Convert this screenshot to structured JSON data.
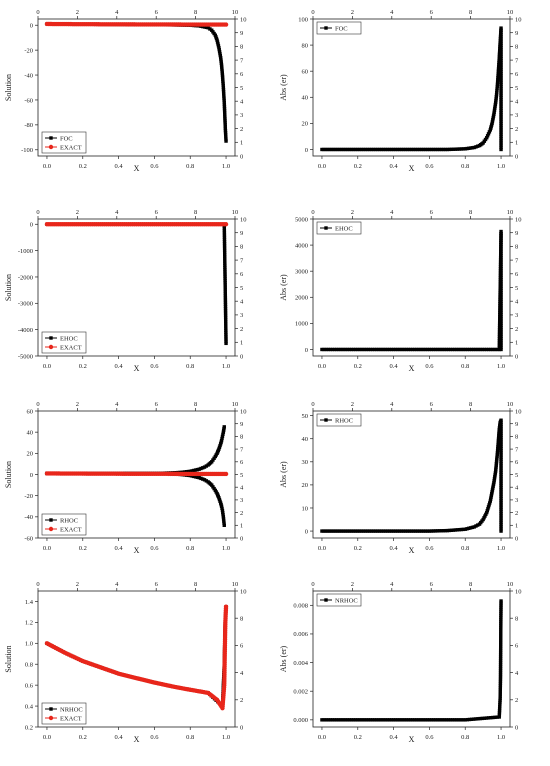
{
  "chart_data": [
    {
      "type": "line",
      "ylabel": "Solution",
      "xlabel": "X",
      "xlim": [
        -0.05,
        1.05
      ],
      "ylim": [
        -105,
        5
      ],
      "x_ticks": [
        "0.0",
        "0.2",
        "0.4",
        "0.6",
        "0.8",
        "1.0"
      ],
      "y_ticks": [
        "0",
        "-20",
        "-40",
        "-60",
        "-80",
        "-100"
      ],
      "y_tick_values": [
        0,
        -20,
        -40,
        -60,
        -80,
        -100
      ],
      "top_ticks": [
        "0",
        "2",
        "4",
        "6",
        "8",
        "10"
      ],
      "right_ticks": [
        "10",
        "9",
        "8",
        "7",
        "6",
        "5",
        "4",
        "3",
        "2",
        "1",
        "0"
      ],
      "legend": [
        "FOC",
        "EXACT"
      ],
      "legend_position": "bottom-left",
      "series": [
        {
          "name": "FOC",
          "color": "#000000",
          "marker": "square",
          "x": [
            0.0,
            0.1,
            0.2,
            0.3,
            0.4,
            0.5,
            0.6,
            0.7,
            0.8,
            0.85,
            0.9,
            0.92,
            0.94,
            0.95,
            0.96,
            0.97,
            0.975,
            0.98,
            0.985,
            0.99,
            0.993,
            0.996,
            1.0
          ],
          "y": [
            1.0,
            0.9,
            0.8,
            0.7,
            0.6,
            0.5,
            0.4,
            0.3,
            0.0,
            -0.5,
            -2,
            -4,
            -8,
            -12,
            -18,
            -26,
            -32,
            -40,
            -50,
            -62,
            -72,
            -83,
            -93
          ]
        },
        {
          "name": "EXACT",
          "color": "#e8261b",
          "marker": "circle",
          "x": [
            0.0,
            0.1,
            0.2,
            0.3,
            0.4,
            0.5,
            0.6,
            0.7,
            0.8,
            0.9,
            1.0
          ],
          "y": [
            1.0,
            0.91,
            0.83,
            0.77,
            0.71,
            0.67,
            0.63,
            0.59,
            0.56,
            0.53,
            0.5
          ]
        }
      ]
    },
    {
      "type": "line",
      "ylabel": "Abs (er)",
      "xlabel": "X",
      "xlim": [
        -0.05,
        1.05
      ],
      "ylim": [
        -5,
        100
      ],
      "x_ticks": [
        "0.0",
        "0.2",
        "0.4",
        "0.6",
        "0.8",
        "1.0"
      ],
      "y_ticks": [
        "100",
        "80",
        "60",
        "40",
        "20",
        "0"
      ],
      "y_tick_values": [
        100,
        80,
        60,
        40,
        20,
        0
      ],
      "top_ticks": [
        "0",
        "2",
        "4",
        "6",
        "8",
        "10"
      ],
      "right_ticks": [
        "10",
        "9",
        "8",
        "7",
        "6",
        "5",
        "4",
        "3",
        "2",
        "1",
        "0"
      ],
      "legend": [
        "FOC"
      ],
      "legend_position": "top-left",
      "series": [
        {
          "name": "FOC",
          "color": "#000000",
          "marker": "square",
          "x": [
            0.0,
            0.1,
            0.2,
            0.3,
            0.4,
            0.5,
            0.6,
            0.7,
            0.8,
            0.85,
            0.88,
            0.9,
            0.92,
            0.94,
            0.95,
            0.96,
            0.97,
            0.975,
            0.98,
            0.985,
            0.99,
            0.995,
            1.0,
            1.0
          ],
          "y": [
            0,
            0,
            0,
            0,
            0,
            0,
            0,
            0,
            0.5,
            1.5,
            3,
            5,
            9,
            15,
            20,
            27,
            36,
            42,
            50,
            60,
            70,
            82,
            93,
            0
          ]
        }
      ]
    },
    {
      "type": "line",
      "ylabel": "Solution",
      "xlabel": "X",
      "xlim": [
        -0.05,
        1.05
      ],
      "ylim": [
        -5000,
        200
      ],
      "x_ticks": [
        "0.0",
        "0.2",
        "0.4",
        "0.6",
        "0.8",
        "1.0"
      ],
      "y_ticks": [
        "0",
        "-1000",
        "-2000",
        "-3000",
        "-4000",
        "-5000"
      ],
      "y_tick_values": [
        0,
        -1000,
        -2000,
        -3000,
        -4000,
        -5000
      ],
      "top_ticks": [
        "0",
        "2",
        "4",
        "6",
        "8",
        "10"
      ],
      "right_ticks": [
        "10",
        "9",
        "8",
        "7",
        "6",
        "5",
        "4",
        "3",
        "2",
        "1",
        "0"
      ],
      "legend": [
        "EHOC",
        "EXACT"
      ],
      "legend_position": "bottom-left",
      "series": [
        {
          "name": "EHOC",
          "color": "#000000",
          "marker": "square",
          "x": [
            0.0,
            0.2,
            0.4,
            0.6,
            0.8,
            0.99,
            1.0
          ],
          "y": [
            1,
            1,
            1,
            1,
            1,
            1,
            -4520
          ]
        },
        {
          "name": "EXACT",
          "color": "#e8261b",
          "marker": "circle",
          "x": [
            0.0,
            0.1,
            0.2,
            0.3,
            0.4,
            0.5,
            0.6,
            0.7,
            0.8,
            0.9,
            1.0
          ],
          "y": [
            1.0,
            0.91,
            0.83,
            0.77,
            0.71,
            0.67,
            0.63,
            0.59,
            0.56,
            0.53,
            0.5
          ]
        }
      ]
    },
    {
      "type": "line",
      "ylabel": "Abs (er)",
      "xlabel": "X",
      "xlim": [
        -0.05,
        1.05
      ],
      "ylim": [
        -250,
        5000
      ],
      "x_ticks": [
        "0.0",
        "0.2",
        "0.4",
        "0.6",
        "0.8",
        "1.0"
      ],
      "y_ticks": [
        "5000",
        "4000",
        "3000",
        "2000",
        "1000",
        "0"
      ],
      "y_tick_values": [
        5000,
        4000,
        3000,
        2000,
        1000,
        0
      ],
      "top_ticks": [
        "0",
        "2",
        "4",
        "6",
        "8",
        "10"
      ],
      "right_ticks": [
        "10",
        "9",
        "8",
        "7",
        "6",
        "5",
        "4",
        "3",
        "2",
        "1",
        "0"
      ],
      "legend": [
        "EHOC"
      ],
      "legend_position": "top-left",
      "series": [
        {
          "name": "EHOC",
          "color": "#000000",
          "marker": "square",
          "x": [
            0.0,
            0.2,
            0.4,
            0.6,
            0.8,
            0.99,
            1.0,
            1.0
          ],
          "y": [
            0,
            0,
            0,
            0,
            0,
            0,
            4520,
            0
          ]
        }
      ]
    },
    {
      "type": "line",
      "ylabel": "Solution",
      "xlabel": "X",
      "xlim": [
        -0.05,
        1.05
      ],
      "ylim": [
        -60,
        60
      ],
      "x_ticks": [
        "0.0",
        "0.2",
        "0.4",
        "0.6",
        "0.8",
        "1.0"
      ],
      "y_ticks": [
        "60",
        "40",
        "20",
        "0",
        "-20",
        "-40",
        "-60"
      ],
      "y_tick_values": [
        60,
        40,
        20,
        0,
        -20,
        -40,
        -60
      ],
      "top_ticks": [
        "0",
        "2",
        "4",
        "6",
        "8",
        "10"
      ],
      "right_ticks": [
        "10",
        "9",
        "8",
        "7",
        "6",
        "5",
        "4",
        "3",
        "2",
        "1",
        "0"
      ],
      "legend": [
        "RHOC",
        "EXACT"
      ],
      "legend_position": "bottom-left",
      "series": [
        {
          "name": "RHOC",
          "color": "#000000",
          "marker": "square",
          "x": [
            0.0,
            0.2,
            0.4,
            0.6,
            0.7,
            0.75,
            0.8,
            0.85,
            0.88,
            0.9,
            0.92,
            0.94,
            0.95,
            0.96,
            0.97,
            0.975,
            0.98,
            0.985,
            0.99
          ],
          "y": [
            1,
            1,
            1,
            1,
            1.5,
            2,
            3,
            5,
            7,
            9,
            12,
            17,
            20,
            24,
            29,
            32,
            36,
            40,
            45
          ]
        },
        {
          "name": "RHOC",
          "color": "#000000",
          "marker": "square",
          "x": [
            0.0,
            0.2,
            0.4,
            0.6,
            0.7,
            0.75,
            0.8,
            0.85,
            0.88,
            0.9,
            0.92,
            0.94,
            0.95,
            0.96,
            0.97,
            0.975,
            0.98,
            0.985,
            0.99
          ],
          "y": [
            1,
            1,
            1,
            1,
            0.5,
            0,
            -1,
            -3,
            -5,
            -7,
            -10,
            -15,
            -18,
            -22,
            -27,
            -30,
            -34,
            -40,
            -48
          ]
        },
        {
          "name": "EXACT",
          "color": "#e8261b",
          "marker": "circle",
          "x": [
            0.0,
            0.1,
            0.2,
            0.3,
            0.4,
            0.5,
            0.6,
            0.7,
            0.8,
            0.9,
            1.0
          ],
          "y": [
            1.0,
            0.91,
            0.83,
            0.77,
            0.71,
            0.67,
            0.63,
            0.59,
            0.56,
            0.53,
            0.5
          ]
        }
      ]
    },
    {
      "type": "line",
      "ylabel": "Abs (er)",
      "xlabel": "X",
      "xlim": [
        -0.05,
        1.05
      ],
      "ylim": [
        -3,
        52
      ],
      "x_ticks": [
        "0.0",
        "0.2",
        "0.4",
        "0.6",
        "0.8",
        "1.0"
      ],
      "y_ticks": [
        "50",
        "40",
        "30",
        "20",
        "10",
        "0"
      ],
      "y_tick_values": [
        50,
        40,
        30,
        20,
        10,
        0
      ],
      "top_ticks": [
        "0",
        "2",
        "4",
        "6",
        "8",
        "10"
      ],
      "right_ticks": [
        "10",
        "9",
        "8",
        "7",
        "6",
        "5",
        "4",
        "3",
        "2",
        "1",
        "0"
      ],
      "legend": [
        "RHOC"
      ],
      "legend_position": "top-left",
      "series": [
        {
          "name": "RHOC",
          "color": "#000000",
          "marker": "square",
          "x": [
            0.0,
            0.1,
            0.2,
            0.3,
            0.4,
            0.5,
            0.6,
            0.7,
            0.8,
            0.85,
            0.88,
            0.9,
            0.92,
            0.94,
            0.95,
            0.96,
            0.97,
            0.975,
            0.98,
            0.985,
            0.99,
            0.995,
            1.0,
            1.0
          ],
          "y": [
            0,
            0,
            0,
            0,
            0,
            0,
            0,
            0.2,
            0.8,
            1.8,
            3,
            5,
            8,
            13,
            17,
            21,
            26,
            30,
            34,
            39,
            44,
            47,
            48,
            0
          ]
        }
      ]
    },
    {
      "type": "line",
      "ylabel": "Solution",
      "xlabel": "X",
      "xlim": [
        -0.05,
        1.05
      ],
      "ylim": [
        0.2,
        1.5
      ],
      "x_ticks": [
        "0.0",
        "0.2",
        "0.4",
        "0.6",
        "0.8",
        "1.0"
      ],
      "y_ticks": [
        "1.4",
        "1.2",
        "1.0",
        "0.8",
        "0.6",
        "0.4",
        "0.2"
      ],
      "y_tick_values": [
        1.4,
        1.2,
        1.0,
        0.8,
        0.6,
        0.4,
        0.2
      ],
      "top_ticks": [
        "0",
        "2",
        "4",
        "6",
        "8",
        "10"
      ],
      "right_ticks": [
        "10",
        "8",
        "6",
        "4",
        "2",
        "0"
      ],
      "legend": [
        "NRHOC",
        "EXACT"
      ],
      "legend_position": "bottom-left",
      "series": [
        {
          "name": "NRHOC",
          "color": "#000000",
          "marker": "square",
          "x": [
            0.0,
            0.1,
            0.2,
            0.3,
            0.4,
            0.5,
            0.6,
            0.7,
            0.8,
            0.9,
            0.98,
            0.99,
            0.995,
            1.0
          ],
          "y": [
            1.0,
            0.91,
            0.83,
            0.77,
            0.71,
            0.667,
            0.625,
            0.588,
            0.556,
            0.526,
            0.4,
            0.8,
            1.2,
            1.35
          ]
        },
        {
          "name": "EXACT",
          "color": "#e8261b",
          "marker": "circle",
          "x": [
            0.0,
            0.1,
            0.2,
            0.3,
            0.4,
            0.5,
            0.6,
            0.7,
            0.8,
            0.9,
            0.95,
            0.98,
            0.99,
            0.993,
            0.996,
            1.0
          ],
          "y": [
            1.0,
            0.91,
            0.83,
            0.77,
            0.71,
            0.667,
            0.625,
            0.588,
            0.556,
            0.526,
            0.46,
            0.38,
            0.6,
            0.9,
            1.2,
            1.35
          ]
        }
      ]
    },
    {
      "type": "line",
      "ylabel": "Abs (er)",
      "xlabel": "X",
      "xlim": [
        -0.05,
        1.05
      ],
      "ylim": [
        -0.0005,
        0.009
      ],
      "x_ticks": [
        "0.0",
        "0.2",
        "0.4",
        "0.6",
        "0.8",
        "1.0"
      ],
      "y_ticks": [
        "0.008",
        "0.006",
        "0.004",
        "0.002",
        "0.000"
      ],
      "y_tick_values": [
        0.008,
        0.006,
        0.004,
        0.002,
        0.0
      ],
      "top_ticks": [
        "0",
        "2",
        "4",
        "6",
        "8",
        "10"
      ],
      "right_ticks": [
        "10",
        "8",
        "6",
        "4",
        "2",
        "0"
      ],
      "legend": [
        "NRHOC"
      ],
      "legend_position": "top-left",
      "series": [
        {
          "name": "NRHOC",
          "color": "#000000",
          "marker": "square",
          "x": [
            0.0,
            0.2,
            0.4,
            0.6,
            0.8,
            0.99,
            0.995,
            0.997,
            0.998,
            0.999,
            1.0
          ],
          "y": [
            0,
            0,
            0,
            0,
            0,
            0.0002,
            0.0015,
            0.003,
            0.005,
            0.007,
            0.0083
          ]
        }
      ]
    }
  ]
}
